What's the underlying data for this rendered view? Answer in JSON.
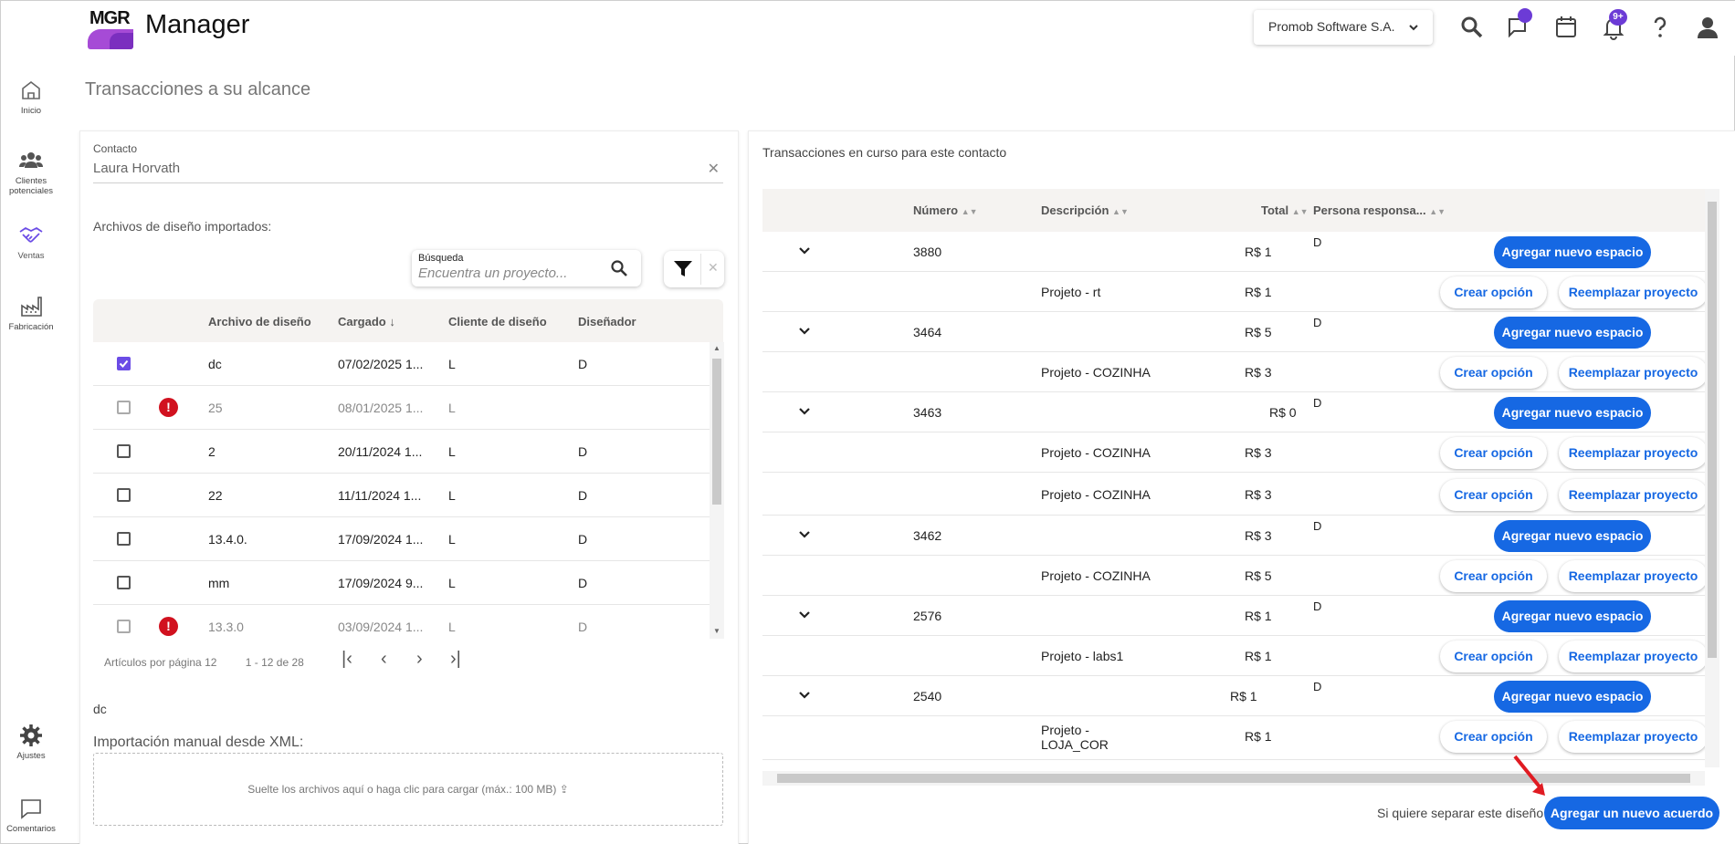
{
  "app": {
    "logo_text": "MGR",
    "title": "Manager"
  },
  "header": {
    "company": "Promob Software S.A.",
    "notifications_badge": "9+",
    "colors": {
      "accent": "#6c3bd6",
      "primary_button": "#1668e3"
    }
  },
  "sidebar": {
    "items": [
      {
        "label": "Inicio",
        "icon": "home-icon"
      },
      {
        "label": "Clientes potenciales",
        "icon": "users-icon"
      },
      {
        "label": "Ventas",
        "icon": "handshake-icon"
      },
      {
        "label": "Fabricación",
        "icon": "factory-icon"
      },
      {
        "label": "Ajustes",
        "icon": "gear-icon"
      },
      {
        "label": "Comentarios",
        "icon": "comment-icon"
      }
    ]
  },
  "page": {
    "title": "Transacciones a su alcance"
  },
  "left": {
    "contact_label": "Contacto",
    "contact_value": "Laura Horvath",
    "imported_label": "Archivos de diseño importados:",
    "search": {
      "caption": "Búsqueda",
      "placeholder": "Encuentra un proyecto..."
    },
    "table": {
      "headers": [
        "Archivo de diseño",
        "Cargado",
        "Cliente de diseño",
        "Diseñador"
      ],
      "rows": [
        {
          "checked": true,
          "error": false,
          "dim": false,
          "file": "dc",
          "date": "07/02/2025 1...",
          "client": "L",
          "designer": "D"
        },
        {
          "checked": false,
          "error": true,
          "dim": true,
          "file": "25",
          "date": "08/01/2025 1...",
          "client": "L",
          "designer": ""
        },
        {
          "checked": false,
          "error": false,
          "dim": false,
          "file": "2",
          "date": "20/11/2024 1...",
          "client": "L",
          "designer": "D"
        },
        {
          "checked": false,
          "error": false,
          "dim": false,
          "file": "22",
          "date": "11/11/2024 1...",
          "client": "L",
          "designer": "D"
        },
        {
          "checked": false,
          "error": false,
          "dim": false,
          "file": "13.4.0.",
          "date": "17/09/2024 1...",
          "client": "L",
          "designer": "D"
        },
        {
          "checked": false,
          "error": false,
          "dim": false,
          "file": "mm",
          "date": "17/09/2024 9...",
          "client": "L",
          "designer": "D"
        },
        {
          "checked": false,
          "error": true,
          "dim": true,
          "file": "13.3.0",
          "date": "03/09/2024 1...",
          "client": "L",
          "designer": "D"
        }
      ]
    },
    "pager": {
      "per_page_label": "Artículos por página",
      "per_page": "12",
      "range": "1 - 12 de 28"
    },
    "selected_file": "dc",
    "xml_label": "Importación manual desde XML:",
    "dropzone_text": "Suelte los archivos aquí o haga clic para cargar (máx.: 100 MB)"
  },
  "right": {
    "title": "Transacciones en curso para este contacto",
    "headers": {
      "number": "Número",
      "description": "Descripción",
      "total": "Total",
      "responsible": "Persona responsa..."
    },
    "add_space_label": "Agregar nuevo espacio",
    "create_option_label": "Crear opción",
    "replace_project_label": "Reemplazar proyecto",
    "rows": [
      {
        "type": "parent",
        "number": "3880",
        "total": "R$ 1",
        "person": "D"
      },
      {
        "type": "child",
        "description": "Projeto - rt",
        "total": "R$ 1"
      },
      {
        "type": "parent",
        "number": "3464",
        "total": "R$ 5",
        "person": "D"
      },
      {
        "type": "child",
        "description": "Projeto - COZINHA",
        "total": "R$ 3"
      },
      {
        "type": "parent",
        "number": "3463",
        "total": "R$ 0",
        "person": "D"
      },
      {
        "type": "child",
        "description": "Projeto - COZINHA",
        "total": "R$ 3"
      },
      {
        "type": "child",
        "description": "Projeto - COZINHA",
        "total": "R$ 3"
      },
      {
        "type": "parent",
        "number": "3462",
        "total": "R$ 3",
        "person": "D"
      },
      {
        "type": "child",
        "description": "Projeto - COZINHA",
        "total": "R$ 5"
      },
      {
        "type": "parent",
        "number": "2576",
        "total": "R$ 1",
        "person": "D"
      },
      {
        "type": "child",
        "description": "Projeto - labs1",
        "total": "R$ 1"
      },
      {
        "type": "parent",
        "number": "2540",
        "total": "R$ 1",
        "person": "D"
      },
      {
        "type": "child",
        "description": "Projeto - LOJA_COR",
        "total": "R$ 1"
      }
    ],
    "separate_text": "Si quiere separar este diseño",
    "new_agreement_label": "Agregar un nuevo acuerdo"
  }
}
